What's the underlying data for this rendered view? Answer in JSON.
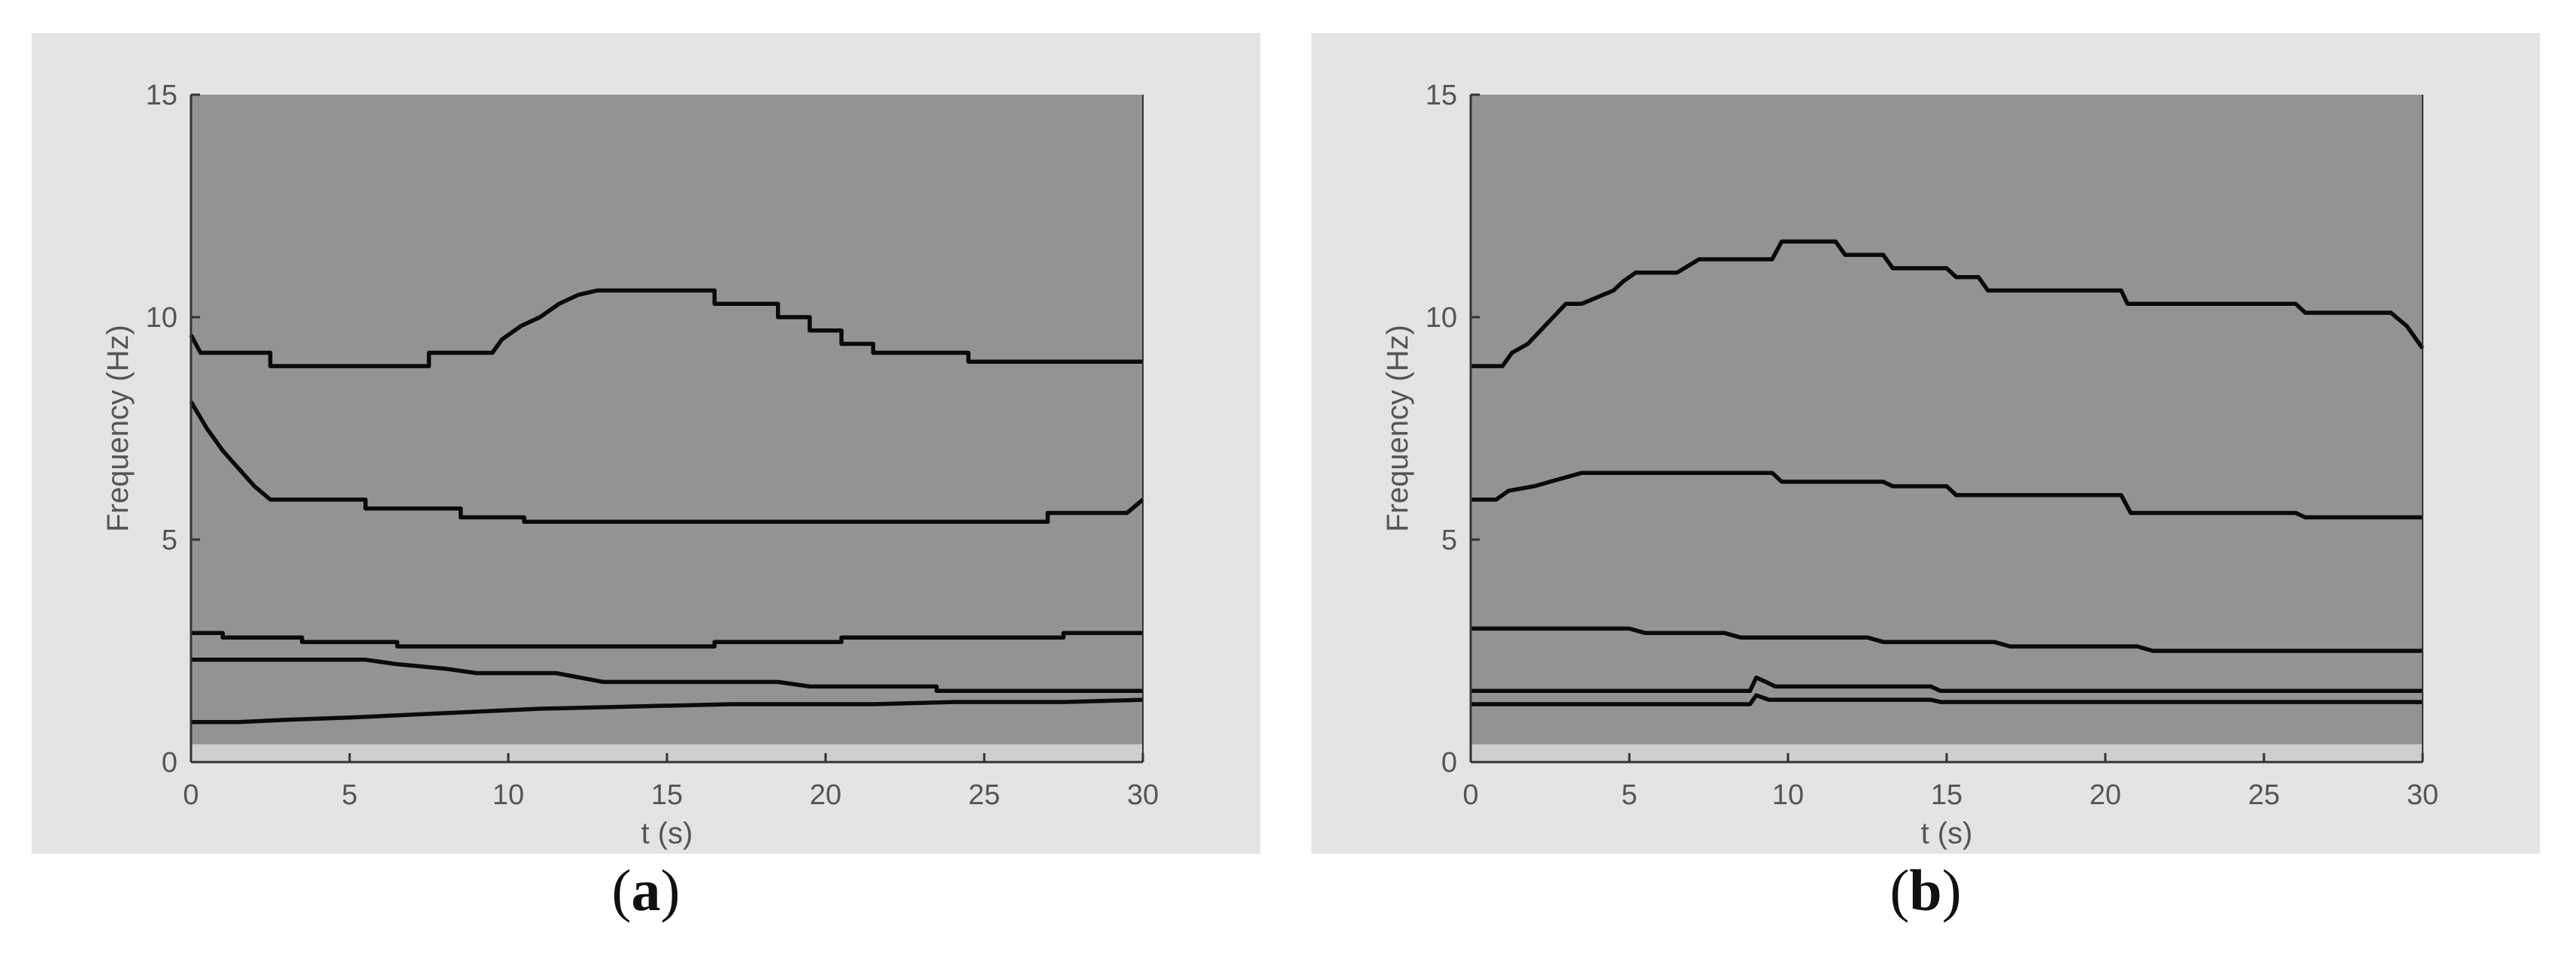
{
  "colors": {
    "panel_bg": "#e4e4e4",
    "plot_bg": "#939393",
    "line": "#0a0a0a",
    "axis": "#333333",
    "tick_text": "#555555"
  },
  "captions": [
    {
      "open": "(",
      "letter": "a",
      "close": ")"
    },
    {
      "open": "(",
      "letter": "b",
      "close": ")"
    }
  ],
  "chart_data": [
    {
      "type": "line",
      "xlabel": "t (s)",
      "ylabel": "Frequency (Hz)",
      "xlim": [
        0,
        30
      ],
      "ylim": [
        0,
        15
      ],
      "xticks": [
        0,
        5,
        10,
        15,
        20,
        25,
        30
      ],
      "yticks": [
        0,
        5,
        10,
        15
      ],
      "grid": false,
      "background": "spectrogram (uniform gray)",
      "series": [
        {
          "x": [
            0,
            0.3,
            2.5,
            2.5,
            7.5,
            7.5,
            9.5,
            9.8,
            10.4,
            11.0,
            11.6,
            12.2,
            12.8,
            13.4,
            16.5,
            16.5,
            18.5,
            18.5,
            19.5,
            19.5,
            20.5,
            20.5,
            21.5,
            21.5,
            24.5,
            24.5,
            30
          ],
          "y": [
            9.6,
            9.2,
            9.2,
            8.9,
            8.9,
            9.2,
            9.2,
            9.5,
            9.8,
            10.0,
            10.3,
            10.5,
            10.6,
            10.6,
            10.6,
            10.3,
            10.3,
            10.0,
            10.0,
            9.7,
            9.7,
            9.4,
            9.4,
            9.2,
            9.2,
            9.0,
            9.0
          ]
        },
        {
          "x": [
            0,
            0.5,
            1.0,
            1.5,
            2.0,
            2.5,
            5.5,
            5.5,
            8.5,
            8.5,
            10.5,
            10.5,
            27.0,
            27.0,
            29.5,
            30
          ],
          "y": [
            8.1,
            7.5,
            7.0,
            6.6,
            6.2,
            5.9,
            5.9,
            5.7,
            5.7,
            5.5,
            5.5,
            5.4,
            5.4,
            5.6,
            5.6,
            5.9
          ]
        },
        {
          "x": [
            0,
            1.0,
            1.0,
            3.5,
            3.5,
            6.5,
            6.5,
            16.5,
            16.5,
            20.5,
            20.5,
            27.5,
            27.5,
            30
          ],
          "y": [
            2.9,
            2.9,
            2.8,
            2.8,
            2.7,
            2.7,
            2.6,
            2.6,
            2.7,
            2.7,
            2.8,
            2.8,
            2.9,
            2.9
          ]
        },
        {
          "x": [
            0,
            5.5,
            6.5,
            8.0,
            9.0,
            11.5,
            13.0,
            18.5,
            19.5,
            23.5,
            23.5,
            30
          ],
          "y": [
            2.3,
            2.3,
            2.2,
            2.1,
            2.0,
            2.0,
            1.8,
            1.8,
            1.7,
            1.7,
            1.6,
            1.6
          ]
        },
        {
          "x": [
            0,
            1.5,
            3.0,
            5.0,
            8.0,
            11.0,
            14.0,
            17.0,
            21.5,
            24.0,
            27.5,
            30
          ],
          "y": [
            0.9,
            0.9,
            0.95,
            1.0,
            1.1,
            1.2,
            1.25,
            1.3,
            1.3,
            1.35,
            1.35,
            1.4
          ]
        }
      ]
    },
    {
      "type": "line",
      "xlabel": "t (s)",
      "ylabel": "Frequency (Hz)",
      "xlim": [
        0,
        30
      ],
      "ylim": [
        0,
        15
      ],
      "xticks": [
        0,
        5,
        10,
        15,
        20,
        25,
        30
      ],
      "yticks": [
        0,
        5,
        10,
        15
      ],
      "grid": false,
      "background": "spectrogram (uniform gray)",
      "series": [
        {
          "x": [
            0,
            1.0,
            1.3,
            1.8,
            2.2,
            2.6,
            3.0,
            3.5,
            4.5,
            4.8,
            5.2,
            6.5,
            7.2,
            9.5,
            9.8,
            11.5,
            11.8,
            13.0,
            13.3,
            15.0,
            15.3,
            16.0,
            16.3,
            20.5,
            20.7,
            26.0,
            26.3,
            29.0,
            29.5,
            30
          ],
          "y": [
            8.9,
            8.9,
            9.2,
            9.4,
            9.7,
            10.0,
            10.3,
            10.3,
            10.6,
            10.8,
            11.0,
            11.0,
            11.3,
            11.3,
            11.7,
            11.7,
            11.4,
            11.4,
            11.1,
            11.1,
            10.9,
            10.9,
            10.6,
            10.6,
            10.3,
            10.3,
            10.1,
            10.1,
            9.8,
            9.3
          ]
        },
        {
          "x": [
            0,
            0.8,
            1.2,
            2.0,
            2.5,
            3.0,
            3.5,
            9.5,
            9.8,
            13.0,
            13.3,
            15.0,
            15.3,
            20.5,
            20.8,
            26.0,
            26.3,
            30
          ],
          "y": [
            5.9,
            5.9,
            6.1,
            6.2,
            6.3,
            6.4,
            6.5,
            6.5,
            6.3,
            6.3,
            6.2,
            6.2,
            6.0,
            6.0,
            5.6,
            5.6,
            5.5,
            5.5
          ]
        },
        {
          "x": [
            0,
            5.0,
            5.5,
            8.0,
            8.5,
            12.5,
            13.0,
            16.5,
            17.0,
            21.0,
            21.5,
            30
          ],
          "y": [
            3.0,
            3.0,
            2.9,
            2.9,
            2.8,
            2.8,
            2.7,
            2.7,
            2.6,
            2.6,
            2.5,
            2.5
          ]
        },
        {
          "x": [
            0,
            8.8,
            9.0,
            9.3,
            9.6,
            14.5,
            14.8,
            30
          ],
          "y": [
            1.6,
            1.6,
            1.9,
            1.8,
            1.7,
            1.7,
            1.6,
            1.6
          ]
        },
        {
          "x": [
            0,
            8.8,
            9.0,
            9.4,
            9.8,
            14.5,
            14.8,
            30
          ],
          "y": [
            1.3,
            1.3,
            1.5,
            1.4,
            1.4,
            1.4,
            1.35,
            1.35
          ]
        }
      ]
    }
  ]
}
